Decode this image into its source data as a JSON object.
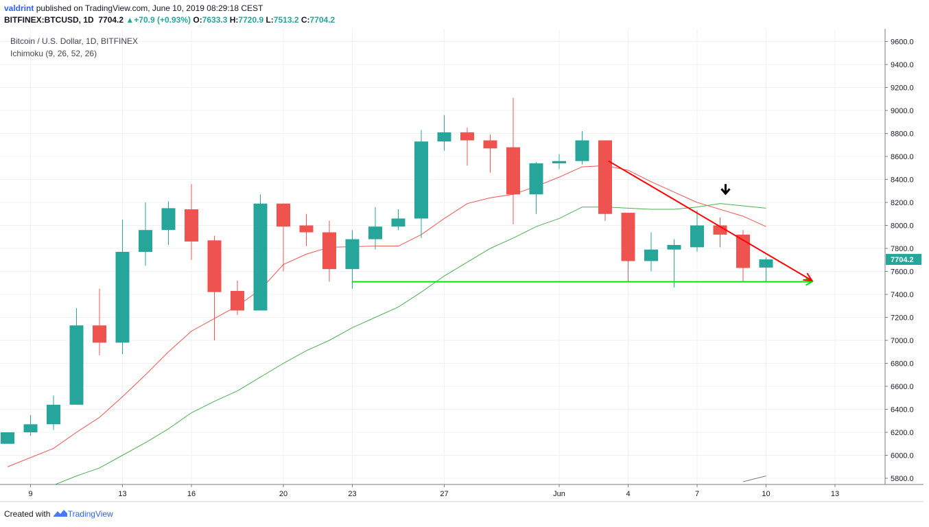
{
  "header": {
    "user": "valdrint",
    "published_text": "published on TradingView.com, June 10, 2019 08:29:18 CEST",
    "symbol": "BITFINEX:BTCUSD, 1D",
    "last": "7704.2",
    "change": "+70.9 (+0.93%)",
    "o_label": "O:",
    "o_value": "7633.3",
    "h_label": "H:",
    "h_value": "7720.9",
    "l_label": "L:",
    "l_value": "7513.2",
    "c_label": "C:",
    "c_value": "7704.2"
  },
  "legend": {
    "title": "Bitcoin / U.S. Dollar, 1D, BITFINEX",
    "indicator": "Ichimoku (9, 26, 52, 26)"
  },
  "footer": {
    "created_with": "Created with",
    "brand": "TradingView"
  },
  "colors": {
    "up": "#26a69a",
    "down": "#ef5350",
    "tenkan": "#ef5350",
    "kijun": "#4caf50",
    "arrow": "#ff0000",
    "support": "#00e600",
    "grid": "#eef1f4",
    "price_label": "#26a69a"
  },
  "chart_data": {
    "type": "candlestick",
    "title": "Bitcoin / U.S. Dollar, 1D, BITFINEX",
    "x_tick_labels": [
      "9",
      "13",
      "16",
      "20",
      "23",
      "27",
      "Jun",
      "4",
      "7",
      "10",
      "13"
    ],
    "y_ticks": [
      "5800.0",
      "6000.0",
      "6200.0",
      "6400.0",
      "6600.0",
      "6800.0",
      "7000.0",
      "7200.0",
      "7400.0",
      "7600.0",
      "7800.0",
      "8000.0",
      "8200.0",
      "8400.0",
      "8600.0",
      "8800.0",
      "9000.0",
      "9200.0",
      "9400.0",
      "9600.0"
    ],
    "ylim": [
      5730,
      9740
    ],
    "last_price_label": "7704.2",
    "candles": [
      {
        "date": "2019-05-08",
        "o": 6100,
        "h": 6200,
        "l": 6100,
        "c": 6200
      },
      {
        "date": "2019-05-09",
        "o": 6200,
        "h": 6350,
        "l": 6170,
        "c": 6270
      },
      {
        "date": "2019-05-10",
        "o": 6270,
        "h": 6520,
        "l": 6220,
        "c": 6440
      },
      {
        "date": "2019-05-11",
        "o": 6440,
        "h": 7280,
        "l": 6440,
        "c": 7130
      },
      {
        "date": "2019-05-12",
        "o": 7130,
        "h": 7450,
        "l": 6870,
        "c": 6980
      },
      {
        "date": "2019-05-13",
        "o": 6980,
        "h": 8050,
        "l": 6880,
        "c": 7770
      },
      {
        "date": "2019-05-14",
        "o": 7770,
        "h": 8200,
        "l": 7650,
        "c": 7960
      },
      {
        "date": "2019-05-15",
        "o": 7960,
        "h": 8210,
        "l": 7830,
        "c": 8150
      },
      {
        "date": "2019-05-16",
        "o": 8140,
        "h": 8360,
        "l": 7700,
        "c": 7860
      },
      {
        "date": "2019-05-17",
        "o": 7870,
        "h": 7910,
        "l": 7000,
        "c": 7420
      },
      {
        "date": "2019-05-18",
        "o": 7430,
        "h": 7520,
        "l": 7220,
        "c": 7260
      },
      {
        "date": "2019-05-19",
        "o": 7260,
        "h": 8270,
        "l": 7260,
        "c": 8190
      },
      {
        "date": "2019-05-20",
        "o": 8190,
        "h": 8190,
        "l": 7600,
        "c": 7990
      },
      {
        "date": "2019-05-21",
        "o": 8000,
        "h": 8100,
        "l": 7820,
        "c": 7940
      },
      {
        "date": "2019-05-22",
        "o": 7940,
        "h": 8040,
        "l": 7510,
        "c": 7620
      },
      {
        "date": "2019-05-23",
        "o": 7620,
        "h": 7960,
        "l": 7450,
        "c": 7880
      },
      {
        "date": "2019-05-24",
        "o": 7880,
        "h": 8160,
        "l": 7790,
        "c": 7990
      },
      {
        "date": "2019-05-25",
        "o": 7990,
        "h": 8140,
        "l": 7960,
        "c": 8060
      },
      {
        "date": "2019-05-26",
        "o": 8060,
        "h": 8830,
        "l": 7890,
        "c": 8730
      },
      {
        "date": "2019-05-27",
        "o": 8730,
        "h": 8960,
        "l": 8650,
        "c": 8810
      },
      {
        "date": "2019-05-28",
        "o": 8810,
        "h": 8850,
        "l": 8520,
        "c": 8740
      },
      {
        "date": "2019-05-29",
        "o": 8740,
        "h": 8790,
        "l": 8460,
        "c": 8670
      },
      {
        "date": "2019-05-30",
        "o": 8680,
        "h": 9110,
        "l": 8010,
        "c": 8270
      },
      {
        "date": "2019-05-31",
        "o": 8270,
        "h": 8550,
        "l": 8100,
        "c": 8540
      },
      {
        "date": "2019-06-01",
        "o": 8540,
        "h": 8620,
        "l": 8490,
        "c": 8560
      },
      {
        "date": "2019-06-02",
        "o": 8560,
        "h": 8820,
        "l": 8530,
        "c": 8740
      },
      {
        "date": "2019-06-03",
        "o": 8740,
        "h": 8740,
        "l": 8040,
        "c": 8100
      },
      {
        "date": "2019-06-04",
        "o": 8110,
        "h": 8110,
        "l": 7510,
        "c": 7690
      },
      {
        "date": "2019-06-05",
        "o": 7690,
        "h": 7940,
        "l": 7600,
        "c": 7790
      },
      {
        "date": "2019-06-06",
        "o": 7790,
        "h": 7880,
        "l": 7460,
        "c": 7830
      },
      {
        "date": "2019-06-07",
        "o": 7810,
        "h": 8130,
        "l": 7770,
        "c": 8000
      },
      {
        "date": "2019-06-08",
        "o": 8000,
        "h": 8070,
        "l": 7810,
        "c": 7920
      },
      {
        "date": "2019-06-09",
        "o": 7920,
        "h": 7960,
        "l": 7510,
        "c": 7630
      },
      {
        "date": "2019-06-10",
        "o": 7633.3,
        "h": 7720.9,
        "l": 7513.2,
        "c": 7704.2
      }
    ],
    "tenkan_sen": [
      {
        "date": "2019-05-08",
        "v": 5900
      },
      {
        "date": "2019-05-10",
        "v": 6060
      },
      {
        "date": "2019-05-11",
        "v": 6200
      },
      {
        "date": "2019-05-12",
        "v": 6330
      },
      {
        "date": "2019-05-13",
        "v": 6510
      },
      {
        "date": "2019-05-14",
        "v": 6700
      },
      {
        "date": "2019-05-15",
        "v": 6900
      },
      {
        "date": "2019-05-16",
        "v": 7080
      },
      {
        "date": "2019-05-17",
        "v": 7190
      },
      {
        "date": "2019-05-18",
        "v": 7300
      },
      {
        "date": "2019-05-19",
        "v": 7440
      },
      {
        "date": "2019-05-20",
        "v": 7660
      },
      {
        "date": "2019-05-21",
        "v": 7750
      },
      {
        "date": "2019-05-22",
        "v": 7810
      },
      {
        "date": "2019-05-24",
        "v": 7820
      },
      {
        "date": "2019-05-25",
        "v": 7820
      },
      {
        "date": "2019-05-26",
        "v": 7920
      },
      {
        "date": "2019-05-27",
        "v": 8060
      },
      {
        "date": "2019-05-28",
        "v": 8190
      },
      {
        "date": "2019-05-29",
        "v": 8240
      },
      {
        "date": "2019-05-30",
        "v": 8270
      },
      {
        "date": "2019-05-31",
        "v": 8340
      },
      {
        "date": "2019-06-01",
        "v": 8420
      },
      {
        "date": "2019-06-02",
        "v": 8510
      },
      {
        "date": "2019-06-03",
        "v": 8520
      },
      {
        "date": "2019-06-04",
        "v": 8480
      },
      {
        "date": "2019-06-05",
        "v": 8380
      },
      {
        "date": "2019-06-06",
        "v": 8290
      },
      {
        "date": "2019-06-07",
        "v": 8200
      },
      {
        "date": "2019-06-08",
        "v": 8140
      },
      {
        "date": "2019-06-09",
        "v": 8080
      },
      {
        "date": "2019-06-10",
        "v": 7990
      }
    ],
    "kijun_sen": [
      {
        "date": "2019-05-10",
        "v": 5740
      },
      {
        "date": "2019-05-11",
        "v": 5820
      },
      {
        "date": "2019-05-12",
        "v": 5890
      },
      {
        "date": "2019-05-13",
        "v": 6000
      },
      {
        "date": "2019-05-14",
        "v": 6110
      },
      {
        "date": "2019-05-15",
        "v": 6230
      },
      {
        "date": "2019-05-16",
        "v": 6370
      },
      {
        "date": "2019-05-17",
        "v": 6470
      },
      {
        "date": "2019-05-18",
        "v": 6560
      },
      {
        "date": "2019-05-19",
        "v": 6680
      },
      {
        "date": "2019-05-20",
        "v": 6800
      },
      {
        "date": "2019-05-21",
        "v": 6910
      },
      {
        "date": "2019-05-22",
        "v": 7000
      },
      {
        "date": "2019-05-23",
        "v": 7110
      },
      {
        "date": "2019-05-24",
        "v": 7200
      },
      {
        "date": "2019-05-25",
        "v": 7290
      },
      {
        "date": "2019-05-26",
        "v": 7420
      },
      {
        "date": "2019-05-27",
        "v": 7560
      },
      {
        "date": "2019-05-28",
        "v": 7680
      },
      {
        "date": "2019-05-29",
        "v": 7800
      },
      {
        "date": "2019-05-30",
        "v": 7890
      },
      {
        "date": "2019-05-31",
        "v": 7990
      },
      {
        "date": "2019-06-01",
        "v": 8060
      },
      {
        "date": "2019-06-02",
        "v": 8160
      },
      {
        "date": "2019-06-03",
        "v": 8160
      },
      {
        "date": "2019-06-04",
        "v": 8150
      },
      {
        "date": "2019-06-05",
        "v": 8140
      },
      {
        "date": "2019-06-06",
        "v": 8140
      },
      {
        "date": "2019-06-07",
        "v": 8160
      },
      {
        "date": "2019-06-08",
        "v": 8190
      },
      {
        "date": "2019-06-09",
        "v": 8170
      },
      {
        "date": "2019-06-10",
        "v": 8150
      }
    ],
    "lagging_line": [
      {
        "date": "2019-06-09",
        "v": 5770
      },
      {
        "date": "2019-06-10",
        "v": 5820
      }
    ],
    "annotations": {
      "down_arrow": {
        "from_date": "2019-06-03",
        "from": 8560,
        "to_date": "2019-06-12",
        "to": 7520
      },
      "support_line": {
        "from_date": "2019-05-23",
        "to_date": "2019-06-12",
        "v": 7510
      },
      "marker": {
        "date": "2019-06-08",
        "v": 8300
      }
    }
  }
}
